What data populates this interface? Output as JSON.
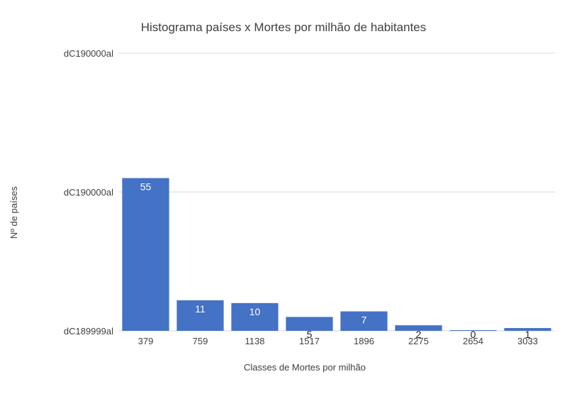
{
  "chart_data": {
    "type": "bar",
    "title": "Histograma países x Mortes por milhão de habitantes",
    "xlabel": "Classes de Mortes por milhão",
    "ylabel": "Nº de países",
    "categories": [
      "379",
      "759",
      "1138",
      "1517",
      "1896",
      "2275",
      "2654",
      "3033"
    ],
    "values": [
      55,
      11,
      10,
      5,
      7,
      2,
      0,
      1
    ],
    "data_labels": [
      "55",
      "11",
      "10",
      "5",
      "7",
      "2",
      "0",
      "1"
    ],
    "y_tick_labels": [
      "dC189999al",
      "dC190000al",
      "dC190000al"
    ],
    "ylim": [
      0,
      100
    ],
    "grid": true,
    "legend": "none",
    "bar_color": "#4472C4",
    "gridline_color": "#D9D9D9",
    "text_color": "#404040"
  }
}
